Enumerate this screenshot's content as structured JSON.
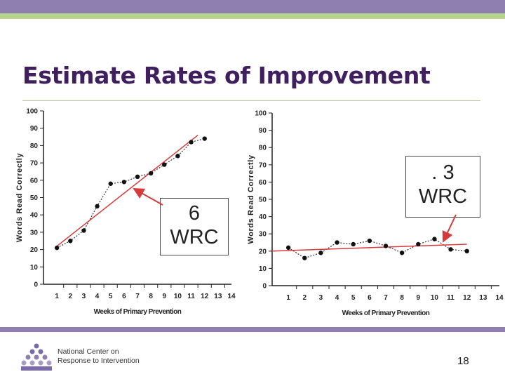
{
  "slide": {
    "title": "Estimate Rates of Improvement",
    "page_number": "18",
    "org_line1": "National Center on",
    "org_line2": "Response to Intervention",
    "colors": {
      "top_band": "#8e7fb0",
      "accent_band": "#b7d48e",
      "title": "#3f1f5e",
      "trend_line": "#d63a3a"
    }
  },
  "annotations": {
    "left": {
      "line1": "6",
      "line2": "WRC"
    },
    "right": {
      "line1": ". 3",
      "line2": "WRC"
    }
  },
  "chart_data": [
    {
      "type": "line",
      "title": "",
      "xlabel": "Weeks of Primary Prevention",
      "ylabel": "Words Read Correctly",
      "x": [
        1,
        2,
        3,
        4,
        5,
        6,
        7,
        8,
        9,
        10,
        11,
        12
      ],
      "values": [
        21,
        25,
        31,
        45,
        58,
        59,
        62,
        64,
        69,
        74,
        82,
        84
      ],
      "xticks": [
        "1",
        "2",
        "3",
        "4",
        "5",
        "6",
        "7",
        "8",
        "9",
        "10",
        "11",
        "12",
        "13",
        "14"
      ],
      "yticks": [
        "0",
        "10",
        "20",
        "30",
        "40",
        "50",
        "60",
        "70",
        "80",
        "90",
        "100"
      ],
      "xlim": [
        0,
        14
      ],
      "ylim": [
        0,
        100
      ],
      "trend_line": {
        "start": [
          1,
          22
        ],
        "end": [
          11.5,
          86
        ]
      }
    },
    {
      "type": "line",
      "title": "",
      "xlabel": "Weeks of Primary Prevention",
      "ylabel": "Words Read Correctly",
      "x": [
        1,
        2,
        3,
        4,
        5,
        6,
        7,
        8,
        9,
        10,
        11,
        12
      ],
      "values": [
        22,
        16,
        19,
        25,
        24,
        26,
        23,
        19,
        24,
        27,
        21,
        20
      ],
      "xticks": [
        "1",
        "2",
        "3",
        "4",
        "5",
        "6",
        "7",
        "8",
        "9",
        "10",
        "11",
        "12",
        "13",
        "14"
      ],
      "yticks": [
        "0",
        "10",
        "20",
        "30",
        "40",
        "50",
        "60",
        "70",
        "80",
        "90",
        "100"
      ],
      "xlim": [
        0,
        14
      ],
      "ylim": [
        0,
        100
      ],
      "trend_line": {
        "start": [
          0,
          20
        ],
        "end": [
          12,
          24
        ]
      }
    }
  ]
}
